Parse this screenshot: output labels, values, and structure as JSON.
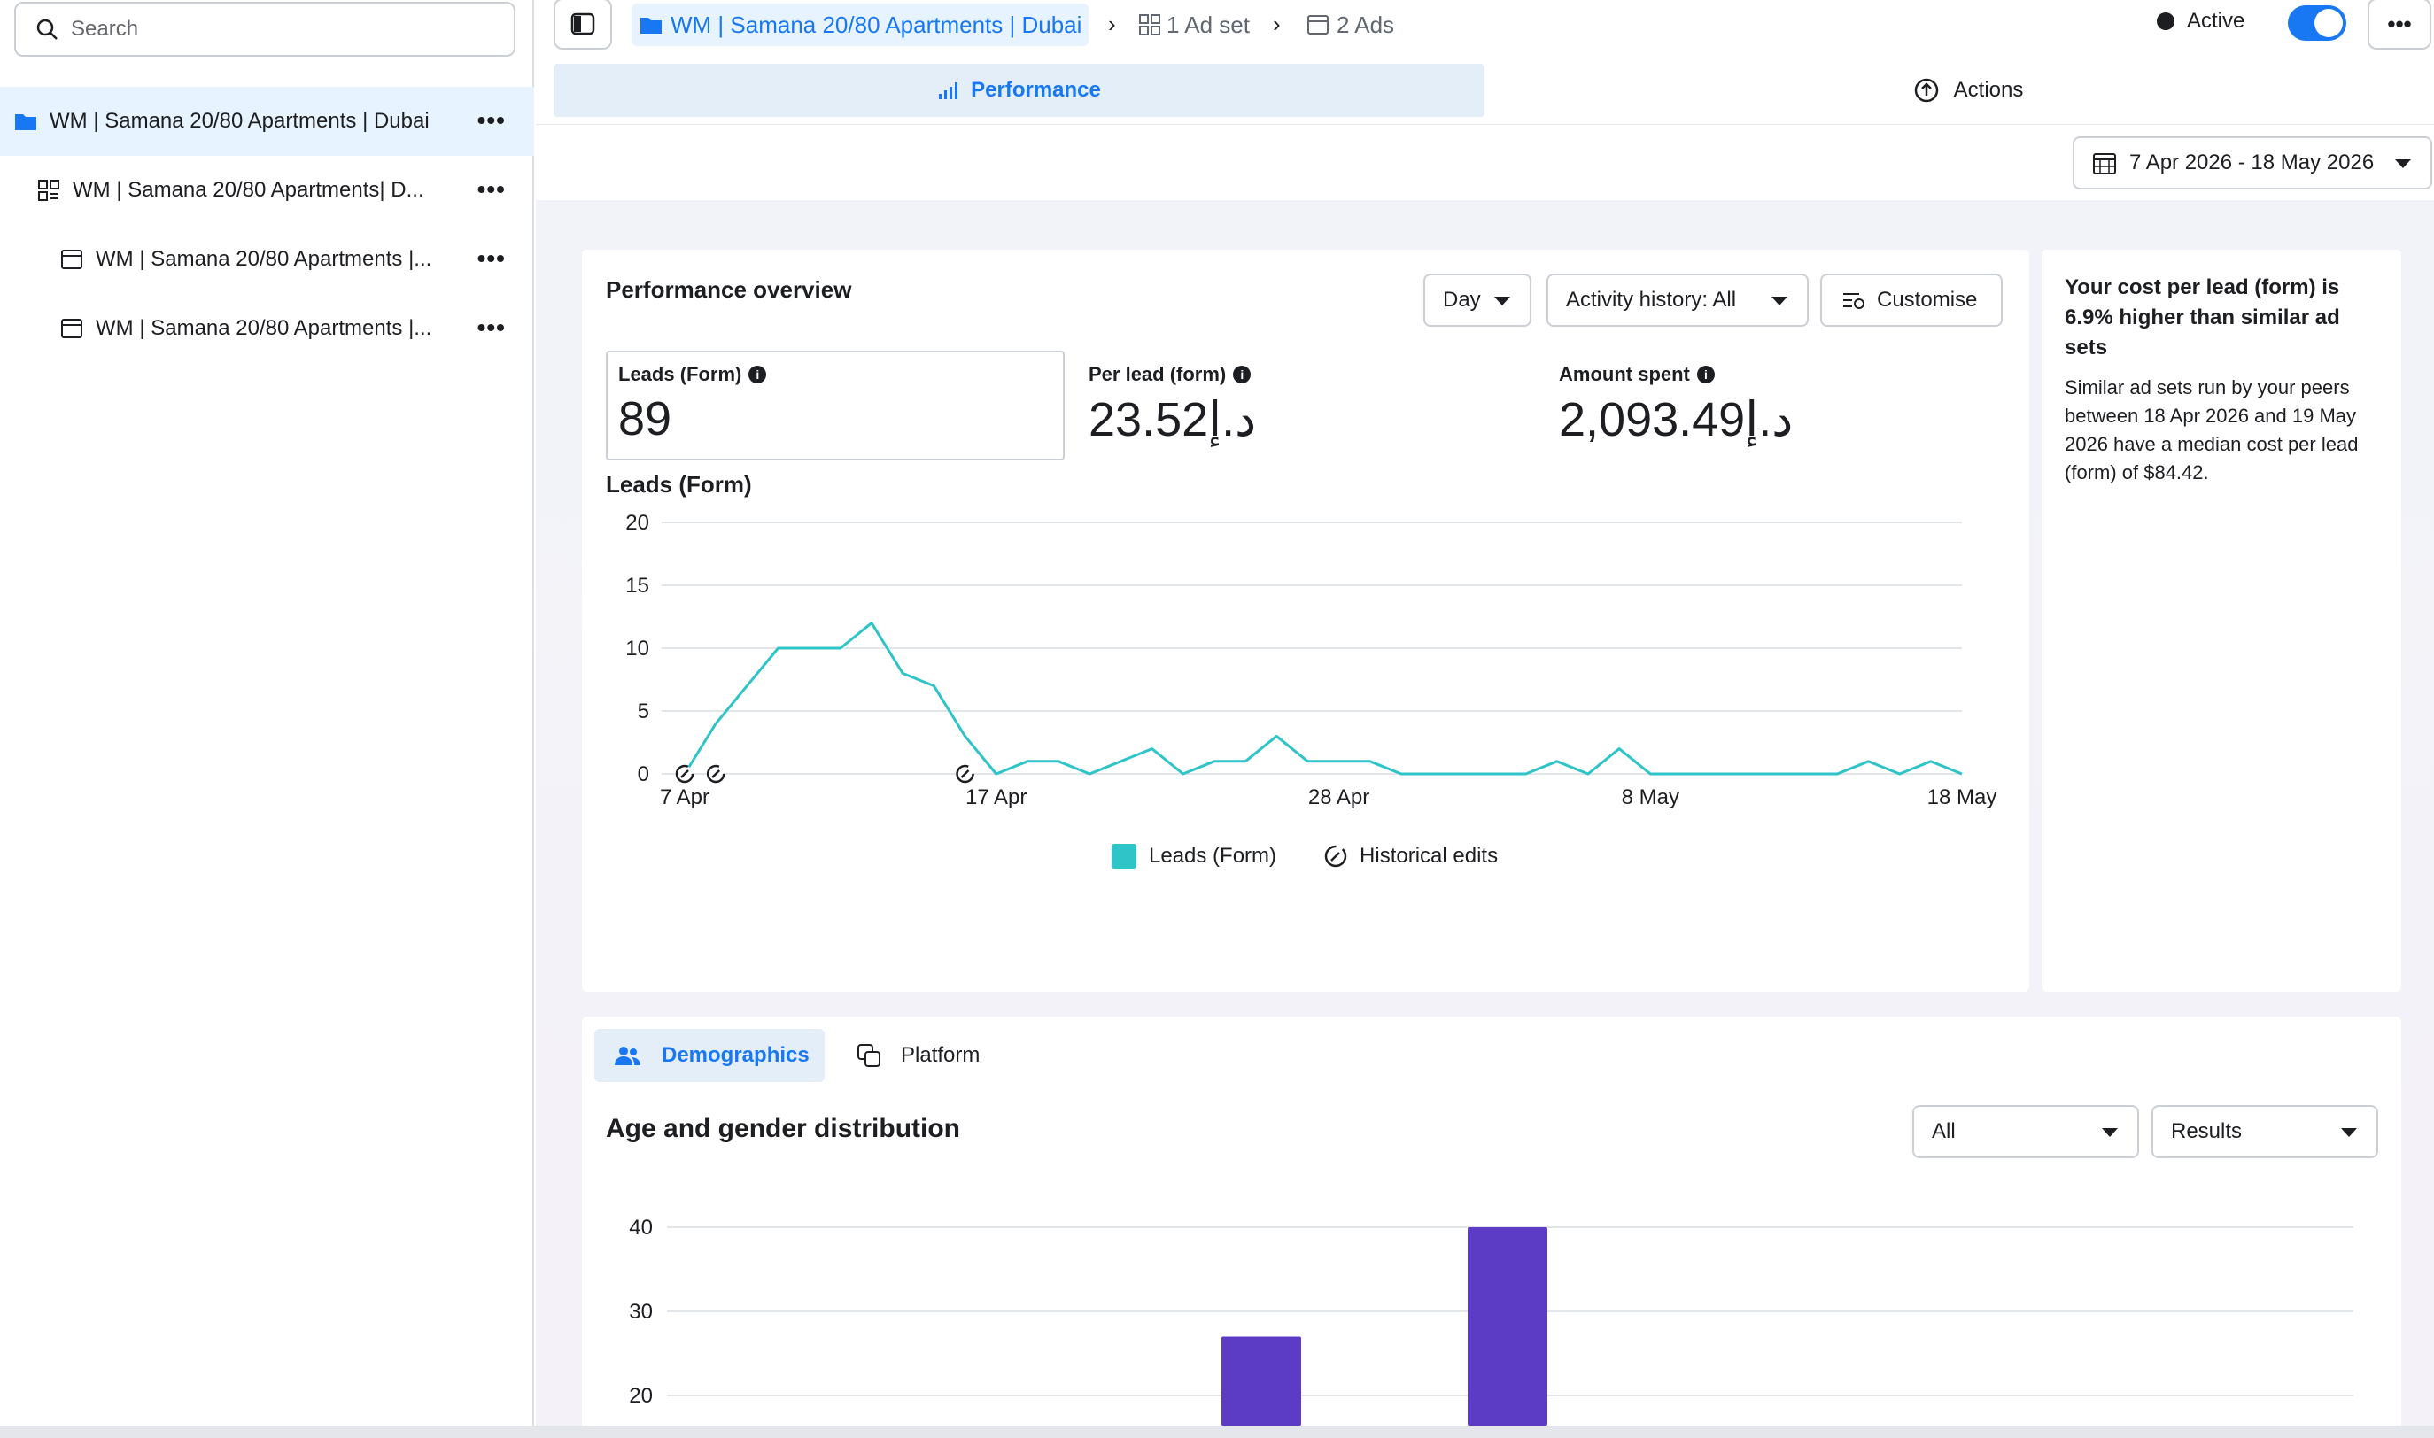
{
  "sidebar": {
    "search_placeholder": "Search",
    "items": [
      {
        "label": "WM | Samana 20/80 Apartments | Dubai",
        "icon": "folder-icon",
        "active": true
      },
      {
        "label": "WM | Samana 20/80 Apartments| D...",
        "icon": "adset-grid-icon",
        "active": false
      },
      {
        "label": "WM | Samana 20/80 Apartments |...",
        "icon": "ad-window-icon",
        "active": false
      },
      {
        "label": "WM | Samana 20/80 Apartments |...",
        "icon": "ad-window-icon",
        "active": false
      }
    ],
    "more_label": "•••"
  },
  "breadcrumb": {
    "campaign": "WM | Samana 20/80 Apartments | Dubai",
    "adset": "1 Ad set",
    "ads": "2 Ads"
  },
  "status": {
    "label": "Active",
    "toggle_on": true
  },
  "more_label": "•••",
  "tabs": {
    "performance": "Performance",
    "actions": "Actions"
  },
  "date_range": "7 Apr 2026 - 18 May 2026",
  "overview": {
    "title": "Performance overview",
    "granularity": "Day",
    "activity": "Activity history: All",
    "customise": "Customise",
    "metrics": [
      {
        "label": "Leads (Form)",
        "value": "89"
      },
      {
        "label": "Per lead (form)",
        "value": "23.52د.إ"
      },
      {
        "label": "Amount spent",
        "value": "2,093.49د.إ"
      }
    ],
    "chart_title": "Leads (Form)",
    "legend_series": "Leads (Form)",
    "legend_edits": "Historical edits"
  },
  "chart_data": [
    {
      "type": "line",
      "title": "Leads (Form)",
      "xlabel": "",
      "ylabel": "",
      "ylim": [
        0,
        20
      ],
      "yticks": [
        "0",
        "5",
        "10",
        "15",
        "20"
      ],
      "xtick_labels": [
        "7 Apr",
        "17 Apr",
        "28 Apr",
        "8 May",
        "18 May"
      ],
      "xtick_index": [
        0,
        10,
        21,
        31,
        41
      ],
      "x": [
        "7 Apr",
        "8 Apr",
        "9 Apr",
        "10 Apr",
        "11 Apr",
        "12 Apr",
        "13 Apr",
        "14 Apr",
        "15 Apr",
        "16 Apr",
        "17 Apr",
        "18 Apr",
        "19 Apr",
        "20 Apr",
        "21 Apr",
        "22 Apr",
        "23 Apr",
        "24 Apr",
        "25 Apr",
        "26 Apr",
        "27 Apr",
        "28 Apr",
        "29 Apr",
        "30 Apr",
        "1 May",
        "2 May",
        "3 May",
        "4 May",
        "5 May",
        "6 May",
        "7 May",
        "8 May",
        "9 May",
        "10 May",
        "11 May",
        "12 May",
        "13 May",
        "14 May",
        "15 May",
        "16 May",
        "17 May",
        "18 May"
      ],
      "series": [
        {
          "name": "Leads (Form)",
          "color": "#2ec4c8",
          "values": [
            0,
            4,
            7,
            10,
            10,
            10,
            12,
            8,
            7,
            3,
            0,
            1,
            1,
            0,
            1,
            2,
            0,
            1,
            1,
            3,
            1,
            1,
            1,
            0,
            0,
            0,
            0,
            0,
            1,
            0,
            2,
            0,
            0,
            0,
            0,
            0,
            0,
            0,
            1,
            0,
            1,
            0
          ]
        }
      ],
      "historical_edits": [
        "7 Apr",
        "8 Apr",
        "16 Apr"
      ],
      "grid": true
    },
    {
      "type": "bar",
      "title": "Age and gender distribution",
      "ylim": [
        20,
        40
      ],
      "yticks": [
        "20",
        "30",
        "40"
      ],
      "visible_bars": [
        27,
        40
      ],
      "color": "#5c3bc5"
    }
  ],
  "insight": {
    "title": "Your cost per lead (form) is 6.9% higher than similar ad sets",
    "body": "Similar ad sets run by your peers between 18 Apr 2026 and 19 May 2026 have a median cost per lead (form) of $84.42."
  },
  "demographics": {
    "tab_demographics": "Demographics",
    "tab_platform": "Platform",
    "title": "Age and gender distribution",
    "filter_all": "All",
    "filter_results": "Results"
  },
  "colors": {
    "accent": "#1877f2",
    "line": "#2ec4c8",
    "bar": "#5c3bc5"
  }
}
